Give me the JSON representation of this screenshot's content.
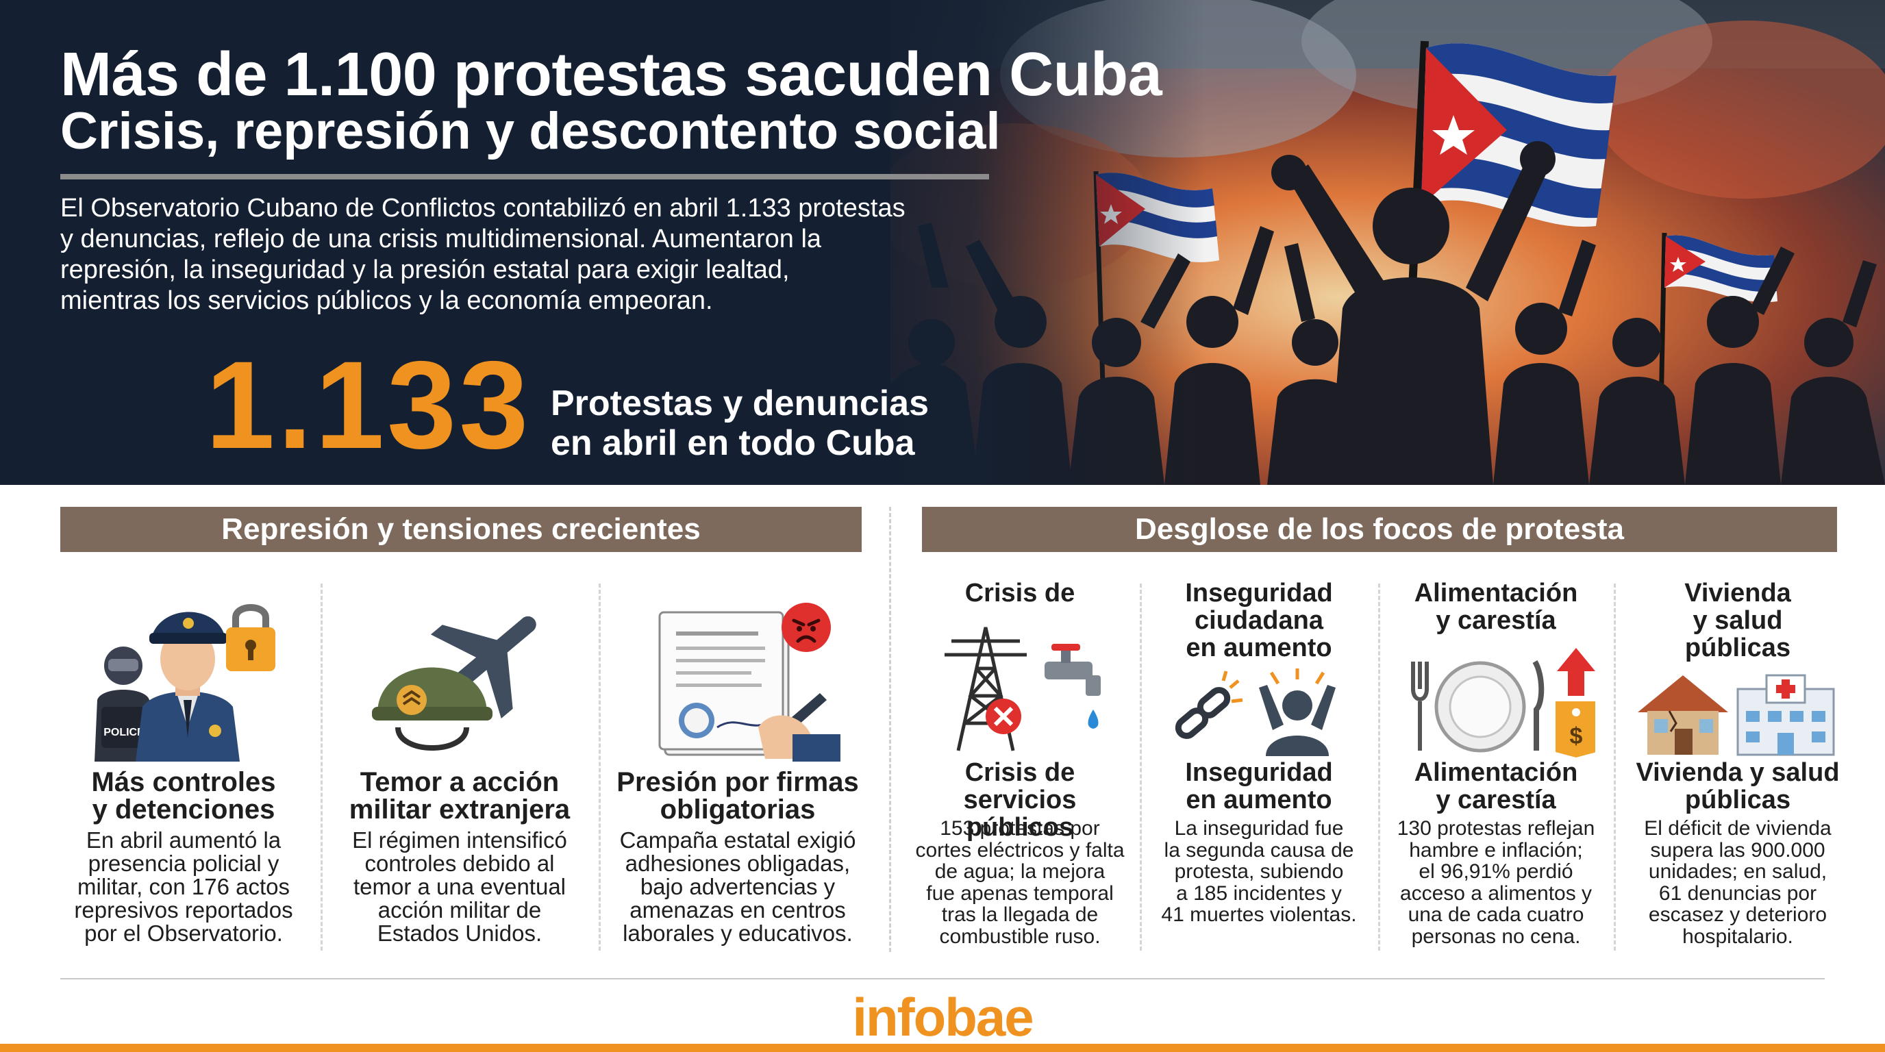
{
  "header": {
    "title": "Más de 1.100 protestas sacuden Cuba",
    "subtitle": "Crisis, represión y descontento social",
    "intro_lines": [
      "El Observatorio Cubano de Conflictos contabilizó en abril 1.133 protestas",
      "y denuncias, reflejo de una crisis multidimensional. Aumentaron la",
      "represión, la inseguridad y la presión estatal para exigir lealtad,",
      "mientras los servicios públicos y la economía empeoran."
    ],
    "big_number": "1.133",
    "big_number_label_lines": [
      "Protestas y denuncias",
      "en abril en todo Cuba"
    ]
  },
  "sections": {
    "left_title": "Represión y tensiones crecientes",
    "right_title": "Desglose de los focos de protesta"
  },
  "repression": [
    {
      "title_lines": [
        "Más controles",
        "y detenciones"
      ],
      "desc_lines": [
        "En abril aumentó la",
        "presencia policial y",
        "militar, con 176 actos",
        "represivos reportados",
        "por el Observatorio."
      ],
      "badge": "POLICE"
    },
    {
      "title_lines": [
        "Temor a acción",
        "militar extranjera"
      ],
      "desc_lines": [
        "El régimen intensificó",
        "controles debido al",
        "temor a una eventual",
        "acción militar de",
        "Estados Unidos."
      ]
    },
    {
      "title_lines": [
        "Presión por firmas",
        "obligatorias"
      ],
      "desc_lines": [
        "Campaña estatal exigió",
        "adhesiones obligadas,",
        "bajo advertencias y",
        "amenazas en centros",
        "laborales y educativos."
      ]
    }
  ],
  "focos": [
    {
      "top_lines": [
        "Crisis de"
      ],
      "title_lines": [
        "Crisis de servicios",
        "públicos"
      ],
      "desc_lines": [
        "153 protestas por",
        "cortes eléctricos y falta",
        "de agua; la mejora",
        "fue apenas temporal",
        "tras la llegada de",
        "combustible ruso."
      ]
    },
    {
      "top_lines": [
        "Inseguridad",
        "ciudadana",
        "en aumento"
      ],
      "title_lines": [
        "Inseguridad",
        "en aumento"
      ],
      "desc_lines": [
        "La inseguridad fue",
        "la segunda causa de",
        "protesta, subiendo",
        "a 185 incidentes y",
        "41 muertes violentas."
      ]
    },
    {
      "top_lines": [
        "Alimentación",
        "y carestía"
      ],
      "title_lines": [
        "Alimentación",
        "y carestía"
      ],
      "desc_lines": [
        "130 protestas reflejan",
        "hambre e inflación;",
        "el 96,91% perdió",
        "acceso a alimentos y",
        "una de cada cuatro",
        "personas no cena."
      ]
    },
    {
      "top_lines": [
        "Vivienda",
        "y salud",
        "públicas"
      ],
      "title_lines": [
        "Vivienda y salud",
        "públicas"
      ],
      "desc_lines": [
        "El déficit de vivienda",
        "supera las 900.000",
        "unidades; en salud,",
        "61 denuncias por",
        "escasez y deterioro",
        "hospitalario."
      ]
    }
  ],
  "footer": {
    "logo": "infobae"
  },
  "colors": {
    "accent": "#f0921f",
    "hero_bg": "#142032",
    "section_bar": "#7d6a5c",
    "flag_blue": "#1f3f8f",
    "flag_red": "#d42a2a"
  },
  "icons": {
    "hero": "protest-crowd-with-cuban-flags",
    "repression": [
      "police-officer-icon",
      "lock-icon",
      "military-helmet-icon",
      "airplane-icon",
      "document-signing-icon",
      "angry-face-icon"
    ],
    "focos": [
      "power-tower-icon",
      "water-tap-icon",
      "broken-chain-icon",
      "distressed-person-icon",
      "plate-cutlery-icon",
      "price-tag-arrow-icon",
      "damaged-house-icon",
      "hospital-icon"
    ]
  }
}
